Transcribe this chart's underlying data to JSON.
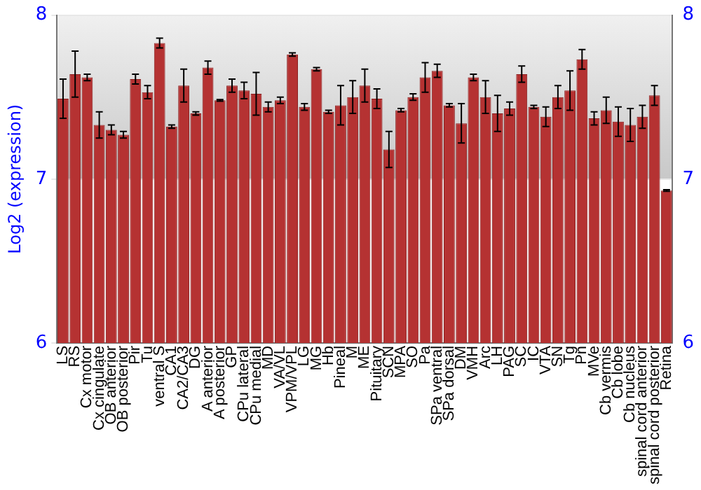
{
  "chart_data": {
    "type": "bar",
    "ylabel": "Log2 (expression)",
    "categories": [
      "LS",
      "RS",
      "Cx motor",
      "Cx cingulate",
      "OB anterior",
      "OB posterior",
      "Pir",
      "Tu",
      "ventral S",
      "CA1",
      "CA2/CA3",
      "DG",
      "A anterior",
      "A posterior",
      "GP",
      "CPu lateral",
      "CPu medial",
      "MD",
      "VA/VL",
      "VPM/VPL",
      "LG",
      "MG",
      "Hb",
      "Pineal",
      "M",
      "ME",
      "Pituitary",
      "SCN",
      "MPA",
      "SO",
      "Pa",
      "SPa ventral",
      "SPa dorsal",
      "DM",
      "VMH",
      "Arc",
      "LH",
      "PAG",
      "SC",
      "IC",
      "VTA",
      "SN",
      "Tg",
      "Pn",
      "MVe",
      "Cb vermis",
      "Cb lobe",
      "Cb nucleus",
      "spinal cord anterior",
      "spinal cord posterior",
      "Retina"
    ],
    "values": [
      7.49,
      7.64,
      7.62,
      7.33,
      7.3,
      7.27,
      7.61,
      7.53,
      7.83,
      7.32,
      7.57,
      7.4,
      7.68,
      7.48,
      7.57,
      7.54,
      7.52,
      7.44,
      7.48,
      7.76,
      7.44,
      7.67,
      7.41,
      7.45,
      7.5,
      7.57,
      7.49,
      7.18,
      7.42,
      7.5,
      7.62,
      7.66,
      7.45,
      7.34,
      7.62,
      7.5,
      7.4,
      7.43,
      7.64,
      7.44,
      7.38,
      7.5,
      7.54,
      7.73,
      7.37,
      7.42,
      7.35,
      7.33,
      7.38,
      7.51,
      6.93
    ],
    "errors": [
      0.12,
      0.14,
      0.02,
      0.08,
      0.03,
      0.02,
      0.03,
      0.04,
      0.03,
      0.01,
      0.1,
      0.01,
      0.04,
      0.005,
      0.04,
      0.05,
      0.13,
      0.03,
      0.02,
      0.01,
      0.02,
      0.01,
      0.01,
      0.12,
      0.1,
      0.1,
      0.06,
      0.11,
      0.01,
      0.02,
      0.09,
      0.04,
      0.01,
      0.12,
      0.02,
      0.1,
      0.11,
      0.04,
      0.05,
      0.01,
      0.06,
      0.07,
      0.12,
      0.06,
      0.04,
      0.08,
      0.09,
      0.1,
      0.07,
      0.06,
      0.005
    ],
    "color": "#b53232",
    "ylim": [
      6,
      8
    ],
    "yticks": [
      6,
      7,
      8
    ],
    "y2lim": [
      6,
      8
    ],
    "y2ticks": [
      6,
      7,
      8
    ],
    "grid": "y",
    "legend": false
  }
}
